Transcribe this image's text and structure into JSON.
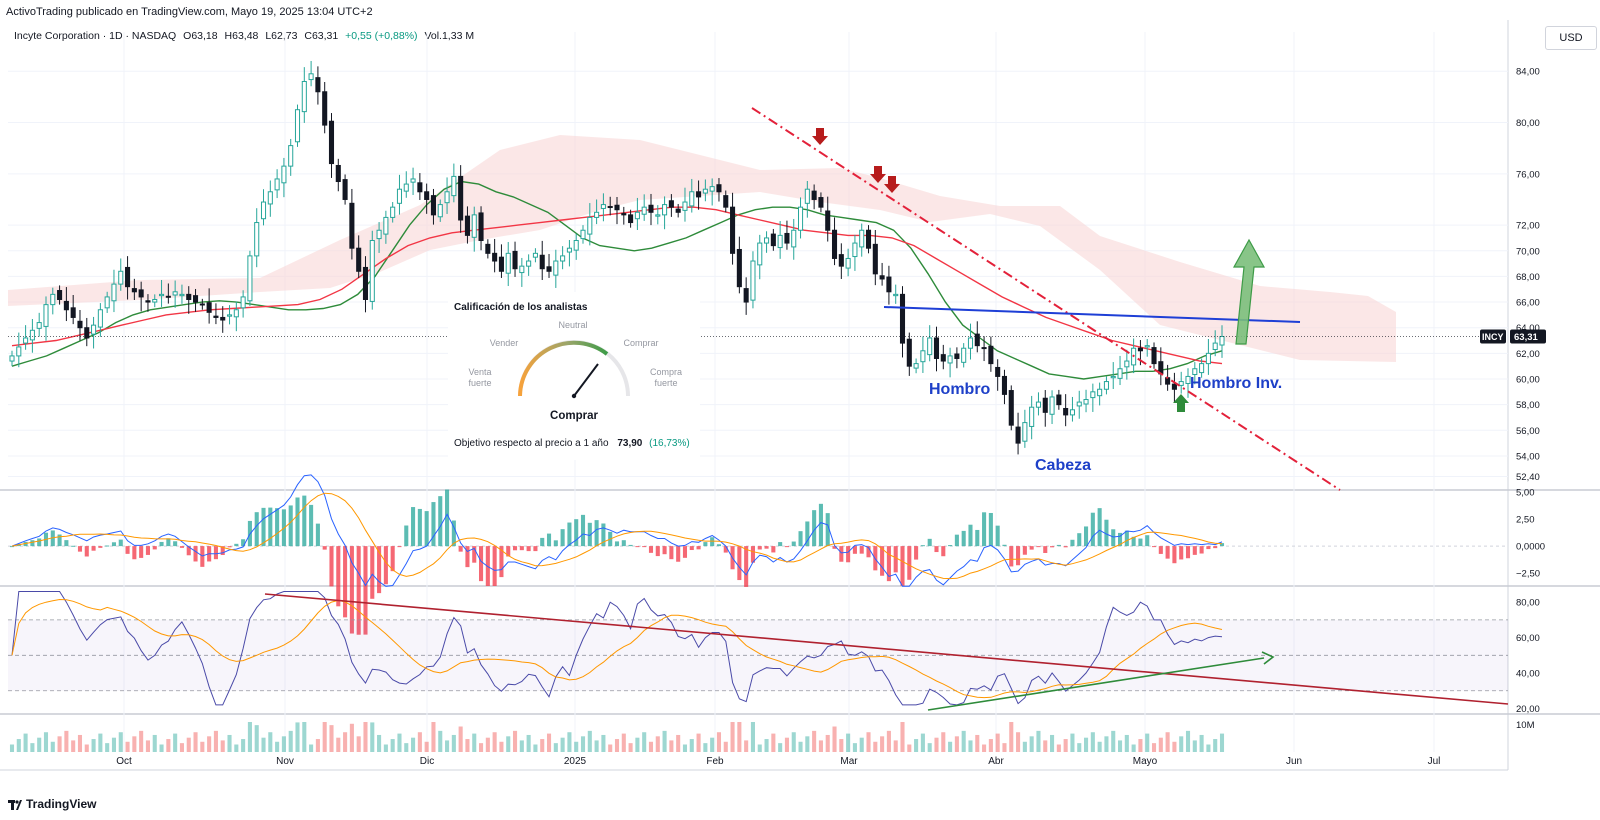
{
  "header": {
    "publisher_line": "ActivoTrading publicado en TradingView.com, Mayo 19, 2025 13:04 UTC+2",
    "symbol_title": "Incyte Corporation · 1D · NASDAQ",
    "open": "O63,18",
    "high": "H63,48",
    "low": "L62,73",
    "close": "C63,31",
    "change": "+0,55 (+0,88%)",
    "volume": "Vol.1,33 M",
    "currency_button": "USD"
  },
  "footer": {
    "brand": "TradingView"
  },
  "colors": {
    "up": "#26a69a",
    "down": "#131722",
    "sma_fast": "#2e8b3a",
    "sma_slow": "#f23645",
    "kumo": "#f8d7d7",
    "neckline": "#1e3fd6",
    "trendline": "#e3213a",
    "macd": "#2962ff",
    "signal": "#ff9800",
    "rsi": "#4a4aa8",
    "rsi_ma": "#ff9800"
  },
  "price_axis": [
    "84,00",
    "80,00",
    "76,00",
    "72,00",
    "70,00",
    "68,00",
    "66,00",
    "64,00",
    "62,00",
    "60,00",
    "58,00",
    "56,00",
    "54,00",
    "52,40"
  ],
  "price_axis_values": [
    84,
    80,
    76,
    72,
    70,
    68,
    66,
    64,
    62,
    60,
    58,
    56,
    54,
    52.4
  ],
  "last_price_tag": {
    "symbol": "INCY",
    "price": "63,31"
  },
  "macd_axis": [
    "5,00",
    "2,50",
    "0,0000",
    "−2,50"
  ],
  "rsi_axis": [
    "80,00",
    "60,00",
    "40,00",
    "20,00"
  ],
  "volume_axis": "10M",
  "time_axis": [
    {
      "label": "Oct"
    },
    {
      "label": "Nov"
    },
    {
      "label": "Dic"
    },
    {
      "label": "2025"
    },
    {
      "label": "Feb"
    },
    {
      "label": "Mar"
    },
    {
      "label": "Abr"
    },
    {
      "label": "Mayo"
    },
    {
      "label": "Jun"
    },
    {
      "label": "Jul"
    }
  ],
  "annotations": {
    "shoulder_left": "Hombro",
    "head": "Cabeza",
    "shoulder_right": "Hombro Inv."
  },
  "analyst_widget": {
    "title": "Calificación de los analistas",
    "neutral": "Neutral",
    "sell": "Vender",
    "buy": "Comprar",
    "strong_sell_1": "Venta",
    "strong_sell_2": "fuerte",
    "strong_buy_1": "Compra",
    "strong_buy_2": "fuerte",
    "rating": "Comprar",
    "target_label": "Objetivo respecto al precio a 1 año",
    "target_value": "73,90",
    "target_pct": "(16,73%)"
  },
  "chart_data": {
    "type": "candlestick",
    "symbol": "INCY",
    "timeframe": "1D",
    "x_range": [
      "2024-09-10",
      "2025-07-25"
    ],
    "price_range": [
      51.5,
      85.5
    ],
    "closes": [
      61.8,
      62.5,
      63.2,
      63.8,
      64.4,
      65.8,
      66.6,
      66.2,
      65.4,
      64.8,
      64.0,
      63.2,
      64.2,
      65.4,
      66.4,
      67.4,
      68.4,
      67.2,
      66.8,
      66.4,
      66.0,
      66.2,
      66.6,
      66.4,
      66.8,
      66.6,
      66.2,
      66.0,
      65.8,
      65.2,
      64.8,
      64.6,
      65.0,
      65.4,
      66.4,
      69.6,
      72.2,
      73.8,
      74.6,
      75.6,
      76.6,
      78.2,
      81.0,
      83.2,
      83.8,
      82.4,
      79.8,
      76.8,
      75.4,
      74.0,
      70.2,
      68.4,
      66.2,
      70.8,
      71.6,
      72.6,
      73.4,
      74.8,
      75.2,
      75.6,
      74.6,
      74.0,
      72.8,
      73.6,
      74.6,
      75.8,
      72.4,
      71.2,
      72.8,
      70.8,
      69.8,
      69.2,
      68.4,
      69.8,
      68.6,
      68.8,
      69.2,
      69.8,
      68.6,
      68.4,
      69.2,
      69.6,
      70.2,
      70.8,
      71.6,
      72.6,
      73.0,
      73.6,
      73.4,
      73.2,
      72.8,
      72.2,
      73.0,
      73.4,
      73.0,
      72.8,
      73.6,
      73.4,
      73.0,
      73.8,
      74.6,
      74.2,
      74.8,
      75.0,
      74.6,
      73.4,
      69.8,
      67.2,
      66.0,
      69.2,
      70.6,
      71.0,
      70.4,
      71.2,
      70.6,
      71.6,
      73.4,
      74.8,
      74.0,
      73.4,
      71.6,
      69.4,
      68.8,
      69.4,
      70.6,
      71.6,
      70.2,
      68.2,
      67.8,
      66.8,
      66.6,
      62.8,
      61.0,
      61.2,
      62.2,
      63.2,
      61.6,
      61.4,
      61.8,
      61.6,
      62.4,
      63.2,
      62.6,
      62.4,
      61.2,
      60.2,
      58.8,
      56.4,
      55.0,
      56.6,
      57.8,
      58.2,
      57.4,
      58.6,
      58.0,
      57.2,
      57.6,
      58.2,
      58.4,
      59.0,
      59.2,
      59.8,
      60.2,
      60.8,
      61.4,
      62.4,
      62.2,
      62.6,
      61.2,
      60.4,
      59.6,
      59.2,
      59.8,
      60.2,
      60.8,
      61.2,
      62.0,
      62.8,
      63.31
    ],
    "price_series": [
      {
        "name": "SMA verde",
        "values": [
          61.0,
          61.4,
          61.8,
          62.4,
          63.0,
          63.6,
          64.4,
          65.0,
          65.4,
          65.6,
          65.8,
          66.0,
          66.1,
          66.0,
          65.8,
          65.6,
          65.4,
          65.4,
          65.5,
          65.8,
          66.6,
          68.0,
          70.0,
          72.0,
          73.6,
          74.8,
          75.4,
          75.2,
          74.6,
          74.2,
          73.6,
          73.0,
          72.0,
          71.0,
          70.4,
          70.2,
          70.0,
          70.2,
          70.6,
          71.0,
          71.6,
          72.2,
          72.8,
          73.2,
          73.4,
          73.4,
          73.2,
          72.8,
          72.6,
          72.4,
          72.2,
          71.6,
          70.2,
          68.2,
          66.0,
          64.2,
          63.2,
          62.2,
          61.6,
          61.0,
          60.4,
          60.2,
          60.0,
          60.2,
          60.4,
          60.6,
          60.6,
          60.8,
          61.2,
          61.8,
          62.2
        ]
      },
      {
        "name": "SMA roja",
        "values": [
          62.6,
          62.8,
          63.0,
          63.4,
          63.8,
          64.2,
          64.6,
          65.0,
          65.2,
          65.4,
          65.5,
          65.6,
          65.7,
          65.8,
          66.2,
          67.0,
          68.2,
          69.4,
          70.4,
          71.0,
          71.4,
          71.6,
          71.8,
          72.0,
          72.2,
          72.4,
          72.6,
          72.8,
          73.0,
          73.2,
          73.4,
          73.4,
          73.2,
          72.8,
          72.4,
          72.0,
          71.6,
          71.4,
          71.2,
          71.2,
          71.0,
          70.4,
          69.4,
          68.4,
          67.4,
          66.4,
          65.6,
          64.8,
          64.2,
          63.6,
          63.0,
          62.6,
          62.2,
          61.8,
          61.4,
          61.2
        ]
      }
    ],
    "macd": {
      "axis_range": [
        -3.5,
        5.0
      ]
    },
    "rsi": {
      "axis_range": [
        18,
        88
      ],
      "bands": [
        30,
        50,
        70
      ]
    }
  }
}
